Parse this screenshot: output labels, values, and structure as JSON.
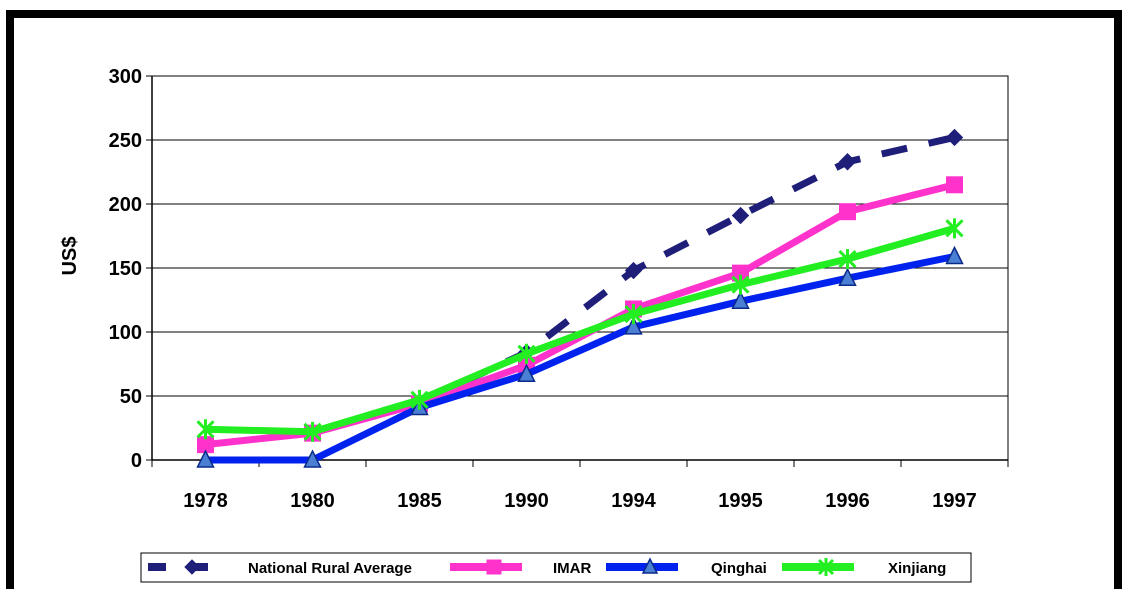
{
  "chart_data": {
    "type": "line",
    "ylabel": "US$",
    "xlabel": "",
    "title": "",
    "categories": [
      "1978",
      "1980",
      "1985",
      "1990",
      "1994",
      "1995",
      "1996",
      "1997"
    ],
    "ylim": [
      0,
      300
    ],
    "yticks": [
      0,
      50,
      100,
      150,
      200,
      250,
      300
    ],
    "grid": "horizontal",
    "legend_position": "bottom",
    "series": [
      {
        "name": "National Rural Average",
        "values": [
          null,
          null,
          45,
          84,
          148,
          191,
          233,
          252
        ],
        "color": "#1f1f7a",
        "line": "dashed",
        "marker": "diamond"
      },
      {
        "name": "IMAR",
        "values": [
          12,
          21,
          44,
          74,
          118,
          146,
          194,
          215
        ],
        "color": "#ff33cc",
        "line": "solid",
        "marker": "square"
      },
      {
        "name": "Qinghai",
        "values": [
          0,
          0,
          41,
          67,
          104,
          124,
          142,
          159
        ],
        "color": "#0022ee",
        "line": "solid",
        "marker": "triangle"
      },
      {
        "name": "Xinjiang",
        "values": [
          24,
          22,
          47,
          83,
          114,
          137,
          157,
          181
        ],
        "color": "#22ee22",
        "line": "solid",
        "marker": "star"
      }
    ]
  }
}
